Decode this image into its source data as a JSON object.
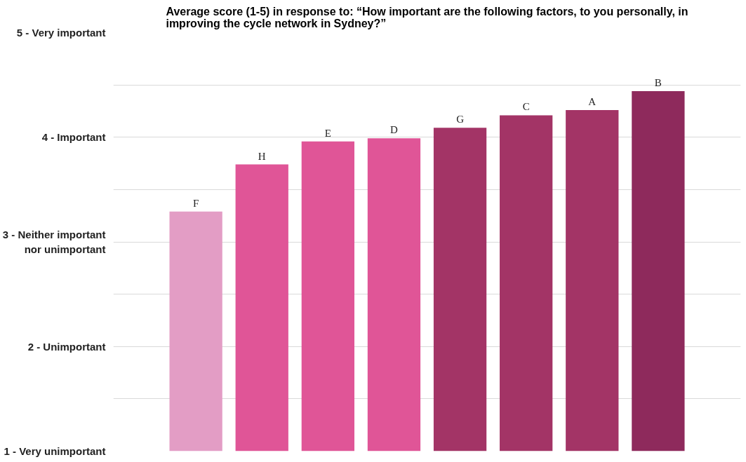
{
  "chart_data": {
    "type": "bar",
    "title": "Average score (1-5) in response to: “How important are the following factors, to you personally, in improving the cycle network in Sydney?”",
    "categories": [
      "F",
      "H",
      "E",
      "D",
      "G",
      "C",
      "A",
      "B"
    ],
    "values": [
      3.29,
      3.74,
      3.96,
      3.99,
      4.09,
      4.21,
      4.26,
      4.44
    ],
    "colors": [
      "#e39dc5",
      "#e05597",
      "#e05597",
      "#e05597",
      "#a33466",
      "#a33466",
      "#a33466",
      "#8e2a5c"
    ],
    "ylim": [
      1,
      5
    ],
    "yticks": [
      {
        "value": 1,
        "label": "1 - Very unimportant"
      },
      {
        "value": 1.5,
        "label": null
      },
      {
        "value": 2,
        "label": "2 - Unimportant"
      },
      {
        "value": 2.5,
        "label": null
      },
      {
        "value": 3,
        "label": "3 - Neither important\nnor unimportant"
      },
      {
        "value": 3.5,
        "label": null
      },
      {
        "value": 4,
        "label": "4 - Important"
      },
      {
        "value": 4.5,
        "label": null
      },
      {
        "value": 5,
        "label": "5 - Very important"
      }
    ],
    "grid": "y"
  }
}
